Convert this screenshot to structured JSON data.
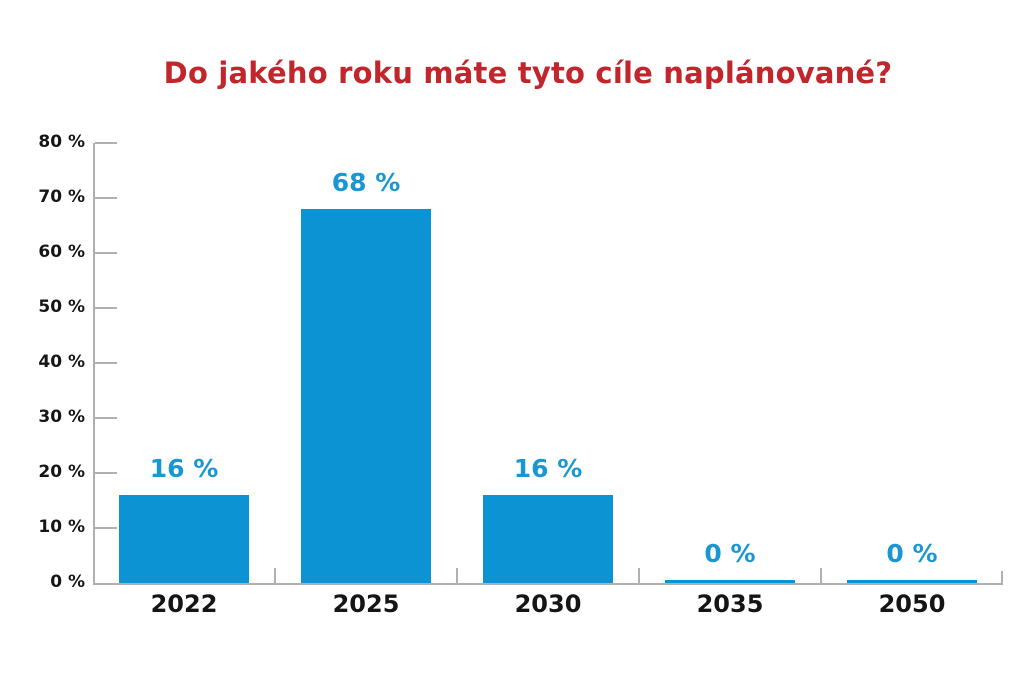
{
  "title": {
    "text": "Do jakého roku máte tyto cíle naplánované?",
    "color": "#c1262c"
  },
  "chart_data": {
    "type": "bar",
    "categories": [
      "2022",
      "2025",
      "2030",
      "2035",
      "2050"
    ],
    "values": [
      16,
      68,
      16,
      0,
      0
    ],
    "value_labels": [
      "16 %",
      "68 %",
      "16 %",
      "0 %",
      "0 %"
    ],
    "y_ticks": [
      {
        "value": 80,
        "label": "80 %"
      },
      {
        "value": 70,
        "label": "70 %"
      },
      {
        "value": 60,
        "label": "60 %"
      },
      {
        "value": 50,
        "label": "50 %"
      },
      {
        "value": 40,
        "label": "40 %"
      },
      {
        "value": 30,
        "label": "30 %"
      },
      {
        "value": 20,
        "label": "20 %"
      },
      {
        "value": 10,
        "label": "10 %"
      },
      {
        "value": 0,
        "label": "0 %"
      }
    ],
    "ylim": [
      0,
      80
    ],
    "xlabel": "",
    "ylabel": "",
    "grid": false,
    "legend": false,
    "colors": {
      "bar": "#0c93d4",
      "value_label": "#1997d2",
      "axis": "#b0b0b0",
      "tick_text": "#151515",
      "background": "#ffffff"
    }
  }
}
